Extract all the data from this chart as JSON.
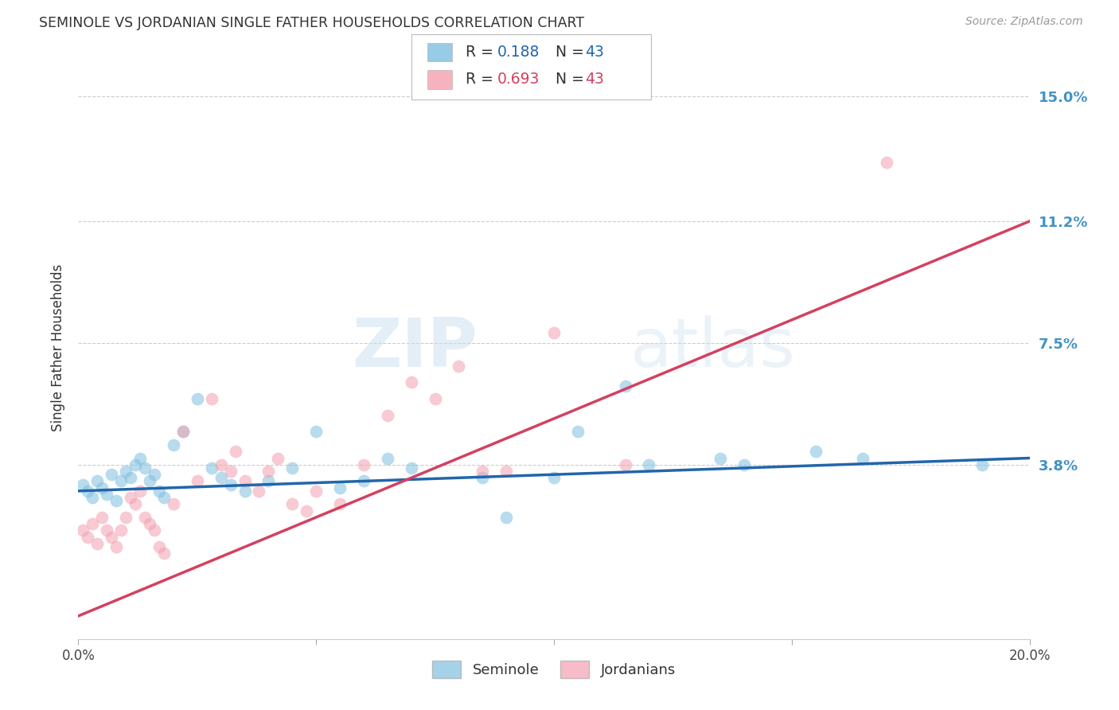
{
  "title": "SEMINOLE VS JORDANIAN SINGLE FATHER HOUSEHOLDS CORRELATION CHART",
  "source": "Source: ZipAtlas.com",
  "ylabel": "Single Father Households",
  "xlim": [
    0.0,
    0.2
  ],
  "ylim": [
    -0.015,
    0.162
  ],
  "ytick_vals": [
    0.038,
    0.075,
    0.112,
    0.15
  ],
  "ytick_labels": [
    "3.8%",
    "7.5%",
    "11.2%",
    "15.0%"
  ],
  "xtick_vals": [
    0.0,
    0.05,
    0.1,
    0.15,
    0.2
  ],
  "xtick_labels": [
    "0.0%",
    "",
    "",
    "",
    "20.0%"
  ],
  "blue_color": "#7fbfdf",
  "pink_color": "#f4a0b0",
  "blue_line_color": "#2166ac",
  "pink_line_color": "#d44060",
  "right_label_color": "#4393c3",
  "watermark_zip": "ZIP",
  "watermark_atlas": "atlas",
  "seminole_x": [
    0.001,
    0.002,
    0.003,
    0.004,
    0.005,
    0.006,
    0.007,
    0.008,
    0.009,
    0.01,
    0.011,
    0.012,
    0.013,
    0.014,
    0.015,
    0.016,
    0.017,
    0.018,
    0.02,
    0.022,
    0.025,
    0.028,
    0.03,
    0.032,
    0.035,
    0.04,
    0.045,
    0.05,
    0.055,
    0.06,
    0.065,
    0.07,
    0.085,
    0.09,
    0.1,
    0.105,
    0.115,
    0.12,
    0.135,
    0.14,
    0.155,
    0.165,
    0.19
  ],
  "seminole_y": [
    0.032,
    0.03,
    0.028,
    0.033,
    0.031,
    0.029,
    0.035,
    0.027,
    0.033,
    0.036,
    0.034,
    0.038,
    0.04,
    0.037,
    0.033,
    0.035,
    0.03,
    0.028,
    0.044,
    0.048,
    0.058,
    0.037,
    0.034,
    0.032,
    0.03,
    0.033,
    0.037,
    0.048,
    0.031,
    0.033,
    0.04,
    0.037,
    0.034,
    0.022,
    0.034,
    0.048,
    0.062,
    0.038,
    0.04,
    0.038,
    0.042,
    0.04,
    0.038
  ],
  "jordanian_x": [
    0.001,
    0.002,
    0.003,
    0.004,
    0.005,
    0.006,
    0.007,
    0.008,
    0.009,
    0.01,
    0.011,
    0.012,
    0.013,
    0.014,
    0.015,
    0.016,
    0.017,
    0.018,
    0.02,
    0.022,
    0.025,
    0.028,
    0.03,
    0.032,
    0.033,
    0.035,
    0.038,
    0.04,
    0.042,
    0.045,
    0.048,
    0.05,
    0.055,
    0.06,
    0.065,
    0.07,
    0.075,
    0.08,
    0.085,
    0.09,
    0.1,
    0.115,
    0.17
  ],
  "jordanian_y": [
    0.018,
    0.016,
    0.02,
    0.014,
    0.022,
    0.018,
    0.016,
    0.013,
    0.018,
    0.022,
    0.028,
    0.026,
    0.03,
    0.022,
    0.02,
    0.018,
    0.013,
    0.011,
    0.026,
    0.048,
    0.033,
    0.058,
    0.038,
    0.036,
    0.042,
    0.033,
    0.03,
    0.036,
    0.04,
    0.026,
    0.024,
    0.03,
    0.026,
    0.038,
    0.053,
    0.063,
    0.058,
    0.068,
    0.036,
    0.036,
    0.078,
    0.038,
    0.13
  ],
  "blue_line_x": [
    0.0,
    0.2
  ],
  "blue_line_y": [
    0.03,
    0.04
  ],
  "pink_line_x": [
    0.0,
    0.2
  ],
  "pink_line_y": [
    -0.008,
    0.112
  ]
}
